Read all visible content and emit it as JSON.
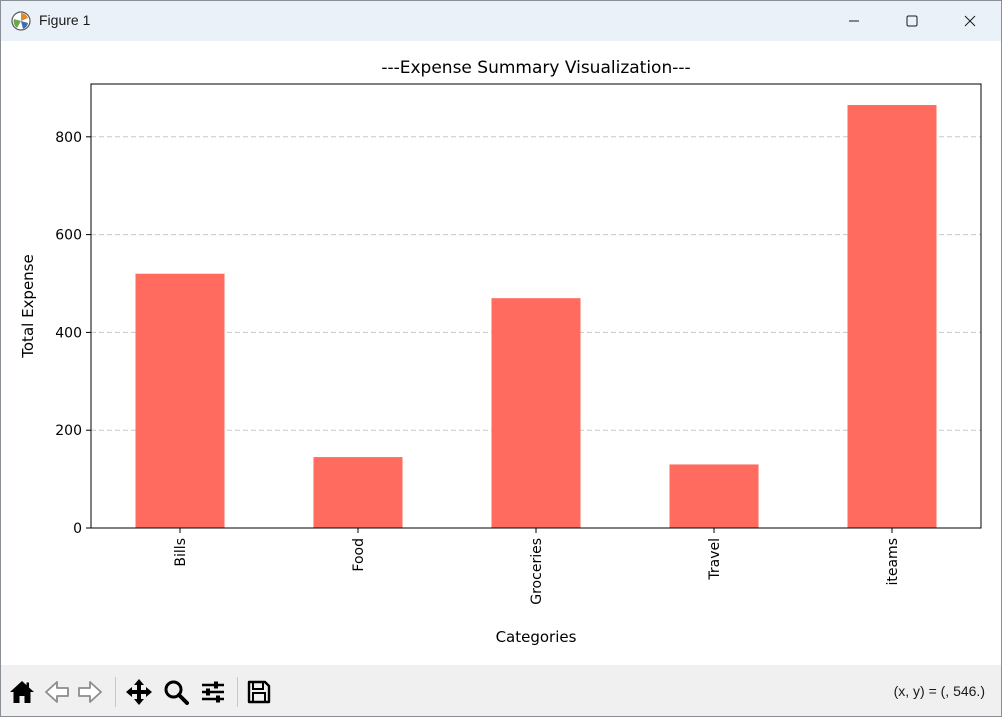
{
  "window": {
    "title": "Figure 1"
  },
  "icons": {
    "app": "matplotlib-icon",
    "minimize": "minimize-icon",
    "maximize": "maximize-icon",
    "close": "close-icon",
    "home": "home-icon",
    "back": "back-arrow-icon",
    "forward": "forward-arrow-icon",
    "pan": "pan-icon",
    "zoom": "zoom-icon",
    "configure": "configure-subplots-icon",
    "save": "save-icon"
  },
  "toolbar": {
    "coordinates": "(x, y) = (, 546.)"
  },
  "colors": {
    "bar": "#ff6b5e",
    "grid": "#c8c8c8",
    "titlebar": "#eaf1f8",
    "toolbar": "#f0f0f0"
  },
  "chart_data": {
    "type": "bar",
    "title": "---Expense Summary Visualization---",
    "xlabel": "Categories",
    "ylabel": "Total Expense",
    "categories": [
      "Bills",
      "Food",
      "Groceries",
      "Travel",
      "iteams"
    ],
    "values": [
      520,
      145,
      470,
      130,
      865
    ],
    "ylim": [
      0,
      908
    ],
    "yticks": [
      0,
      200,
      400,
      600,
      800
    ],
    "ytick_labels": [
      "0",
      "200",
      "400",
      "600",
      "800"
    ],
    "xtick_rotation": "vertical",
    "grid": "y-axis dashed",
    "legend": "none"
  }
}
